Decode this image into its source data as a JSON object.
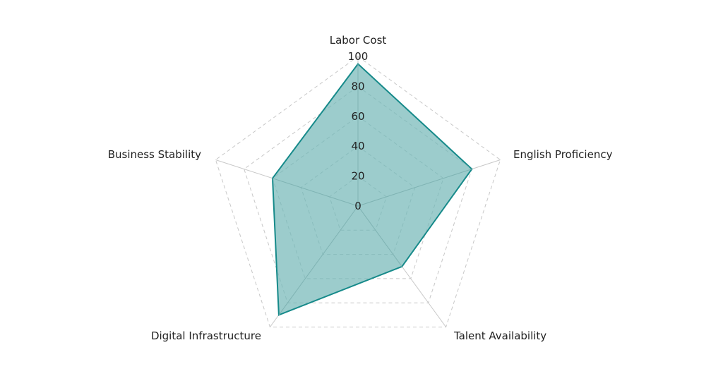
{
  "chart_data": {
    "type": "radar",
    "title": "",
    "axes": [
      "Labor Cost",
      "English Proficiency",
      "Talent Availability",
      "Digital Infrastructure",
      "Business Stability"
    ],
    "series": [
      {
        "name": "",
        "values": [
          95,
          80,
          50,
          90,
          60
        ],
        "stroke_color": "#168a8a",
        "fill_color": "#9ccccc"
      }
    ],
    "radial_ticks": [
      "0",
      "20",
      "40",
      "60",
      "80",
      "100"
    ],
    "radial_range": [
      0,
      100
    ],
    "grid": {
      "style": "dashed",
      "ring_color": "#c8c8c8",
      "spoke_color": "#c8c8c8"
    },
    "legend": "none"
  },
  "labels": {
    "axis_0": "Labor Cost",
    "axis_1": "English Proficiency",
    "axis_2": "Talent Availability",
    "axis_3": "Digital Infrastructure",
    "axis_4": "Business Stability",
    "tick_0": "0",
    "tick_1": "20",
    "tick_2": "40",
    "tick_3": "60",
    "tick_4": "80",
    "tick_5": "100"
  }
}
